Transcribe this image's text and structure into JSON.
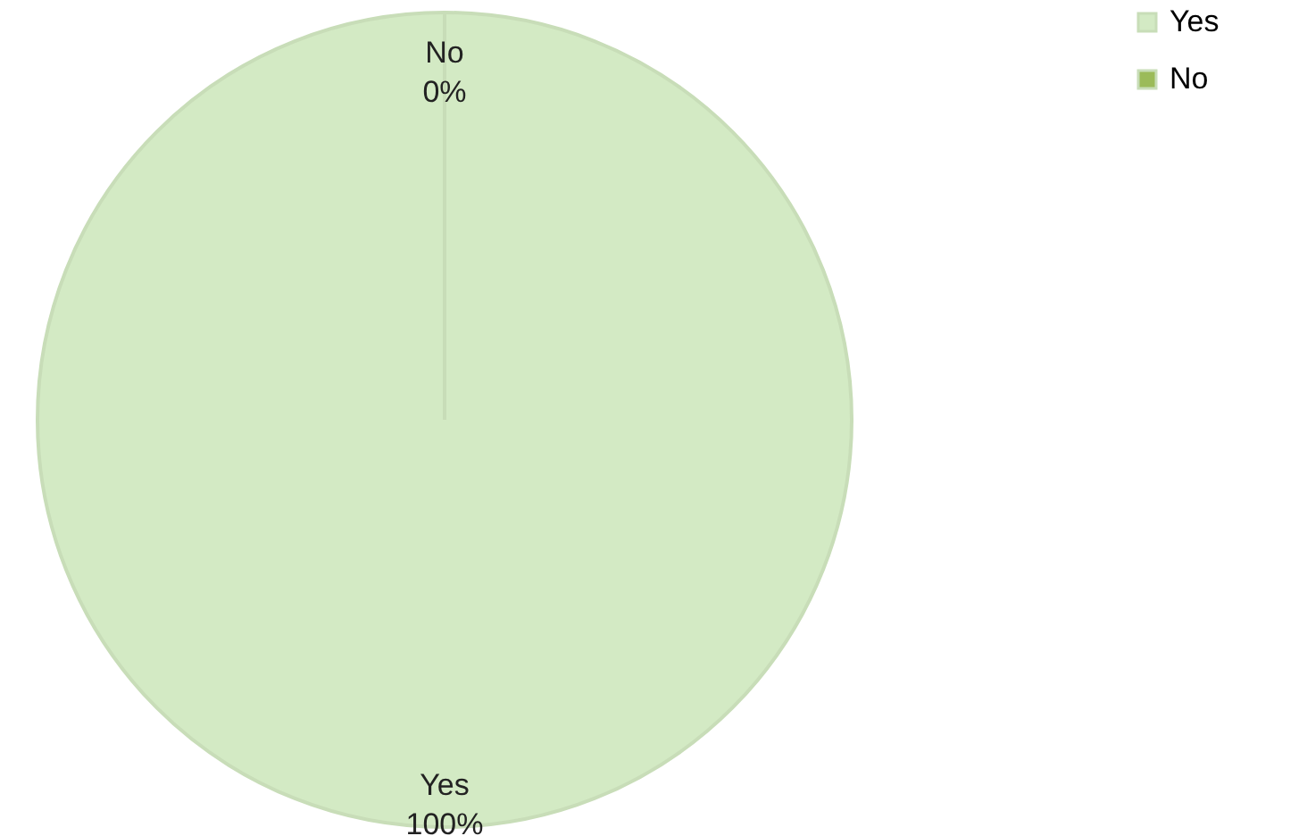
{
  "chart_data": {
    "type": "pie",
    "categories": [
      "Yes",
      "No"
    ],
    "values": [
      100,
      0
    ],
    "colors": [
      "#d3eac4",
      "#9bbb59"
    ],
    "value_labels": [
      "100%",
      "0%"
    ],
    "legend": "right"
  }
}
